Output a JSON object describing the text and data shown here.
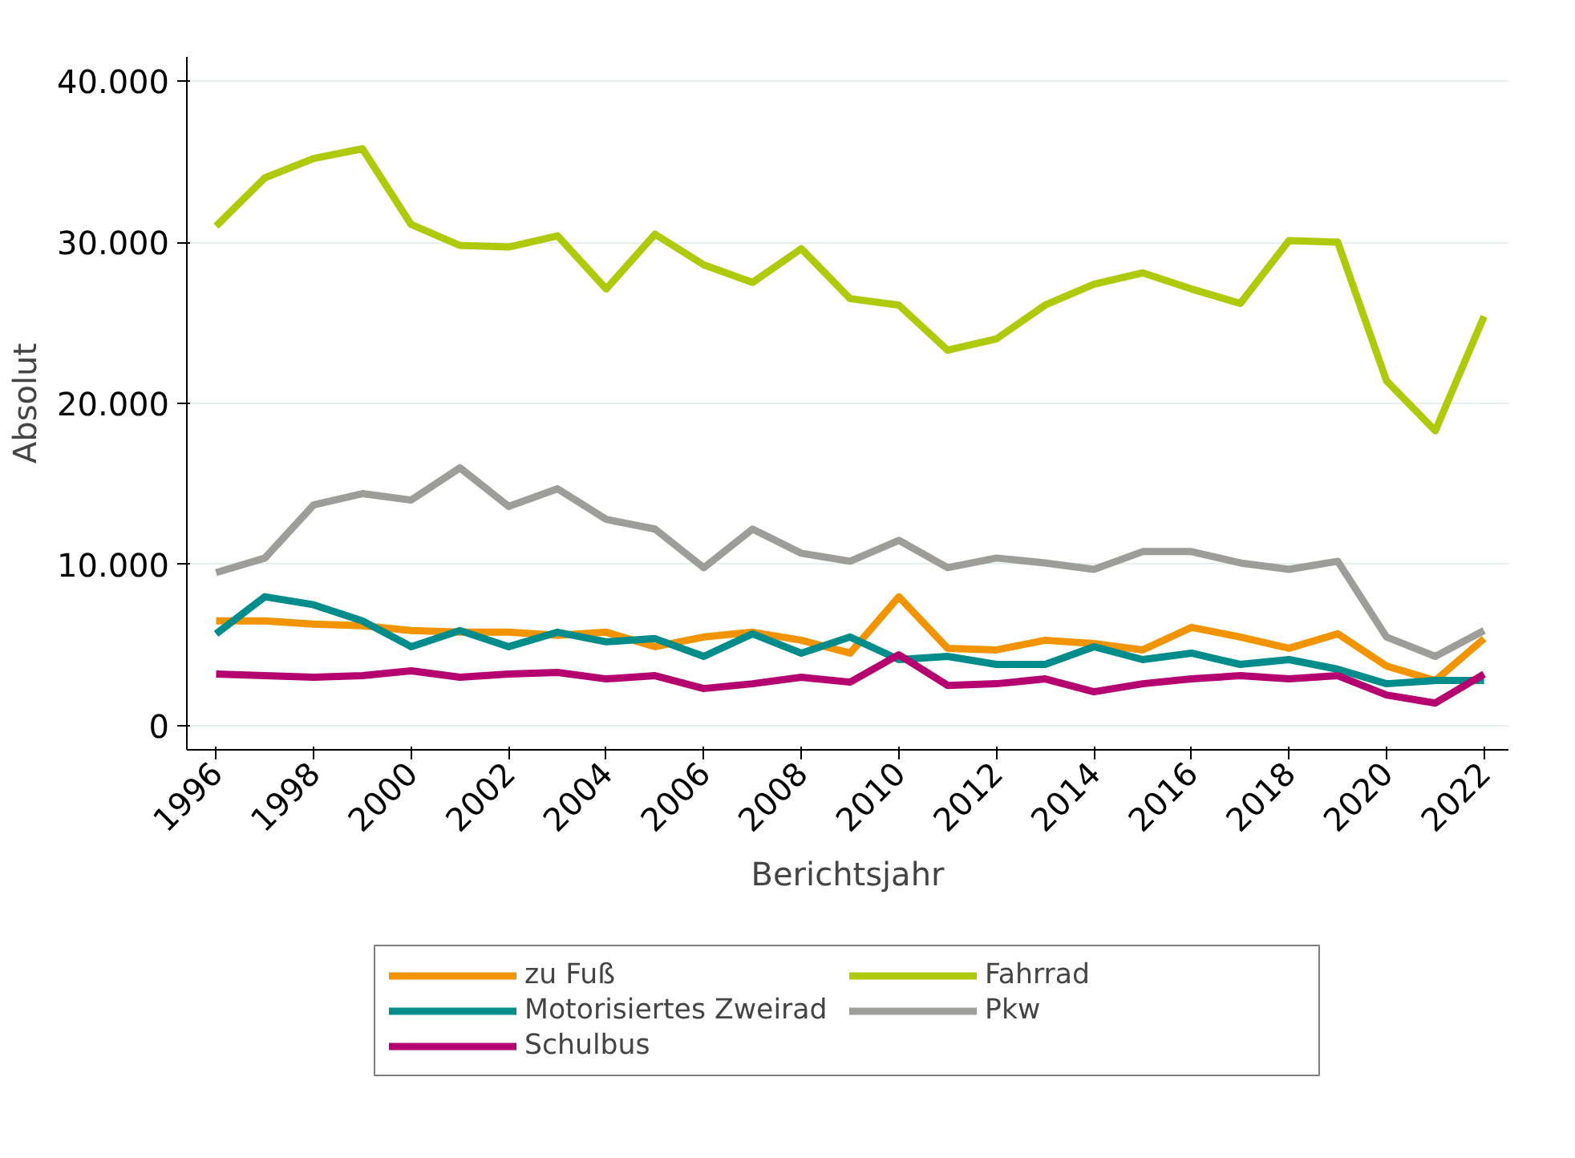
{
  "chart_data": {
    "type": "line",
    "xlabel": "Berichtsjahr",
    "ylabel": "Absolut",
    "x": [
      1996,
      1997,
      1998,
      1999,
      2000,
      2001,
      2002,
      2003,
      2004,
      2005,
      2006,
      2007,
      2008,
      2009,
      2010,
      2011,
      2012,
      2013,
      2014,
      2015,
      2016,
      2017,
      2018,
      2019,
      2020,
      2021,
      2022
    ],
    "series": [
      {
        "name": "zu Fuß",
        "color": "#f29400",
        "values": [
          6500,
          6500,
          6300,
          6200,
          5900,
          5800,
          5800,
          5600,
          5800,
          4900,
          5500,
          5800,
          5300,
          4500,
          8000,
          4800,
          4700,
          5300,
          5100,
          4700,
          6100,
          5500,
          4800,
          5700,
          3700,
          2800,
          5400
        ]
      },
      {
        "name": "Motorisiertes Zweirad",
        "color": "#008c8a",
        "values": [
          5700,
          8000,
          7500,
          6500,
          4900,
          5900,
          4900,
          5800,
          5200,
          5400,
          4300,
          5700,
          4500,
          5500,
          4100,
          4300,
          3800,
          3800,
          4900,
          4100,
          4500,
          3800,
          4100,
          3500,
          2600,
          2800,
          2800
        ]
      },
      {
        "name": "Schulbus",
        "color": "#b5006f",
        "values": [
          3200,
          3100,
          3000,
          3100,
          3400,
          3000,
          3200,
          3300,
          2900,
          3100,
          2300,
          2600,
          3000,
          2700,
          4400,
          2500,
          2600,
          2900,
          2100,
          2600,
          2900,
          3100,
          2900,
          3100,
          1900,
          1400,
          3200
        ]
      },
      {
        "name": "Fahrrad",
        "color": "#afca0b",
        "values": [
          31000,
          34000,
          35200,
          35800,
          31100,
          29800,
          29700,
          30400,
          27100,
          30500,
          28600,
          27500,
          29600,
          26500,
          26100,
          23300,
          24000,
          26100,
          27400,
          28100,
          27100,
          26200,
          30100,
          30000,
          21400,
          18300,
          25400
        ]
      },
      {
        "name": "Pkw",
        "color": "#9d9d9a",
        "values": [
          9500,
          10400,
          13700,
          14400,
          14000,
          16000,
          13600,
          14700,
          12800,
          12200,
          9800,
          12200,
          10700,
          10200,
          11500,
          9800,
          10400,
          10100,
          9700,
          10800,
          10800,
          10100,
          9700,
          10200,
          5500,
          4300,
          5900
        ]
      }
    ],
    "xlim": [
      1995.4,
      2022.5
    ],
    "xticks": [
      1996,
      1998,
      2000,
      2002,
      2004,
      2006,
      2008,
      2010,
      2012,
      2014,
      2016,
      2018,
      2020,
      2022
    ],
    "ylim": [
      -1500,
      41500
    ],
    "yticks": [
      0,
      {
        "value": 10000,
        "label": "10.000"
      },
      {
        "value": 20000,
        "label": "20.000"
      },
      {
        "value": 30000,
        "label": "30.000"
      },
      {
        "value": 40000,
        "label": "40.000"
      }
    ],
    "grid": "y",
    "legend": "bottom",
    "line_style": "solid"
  }
}
